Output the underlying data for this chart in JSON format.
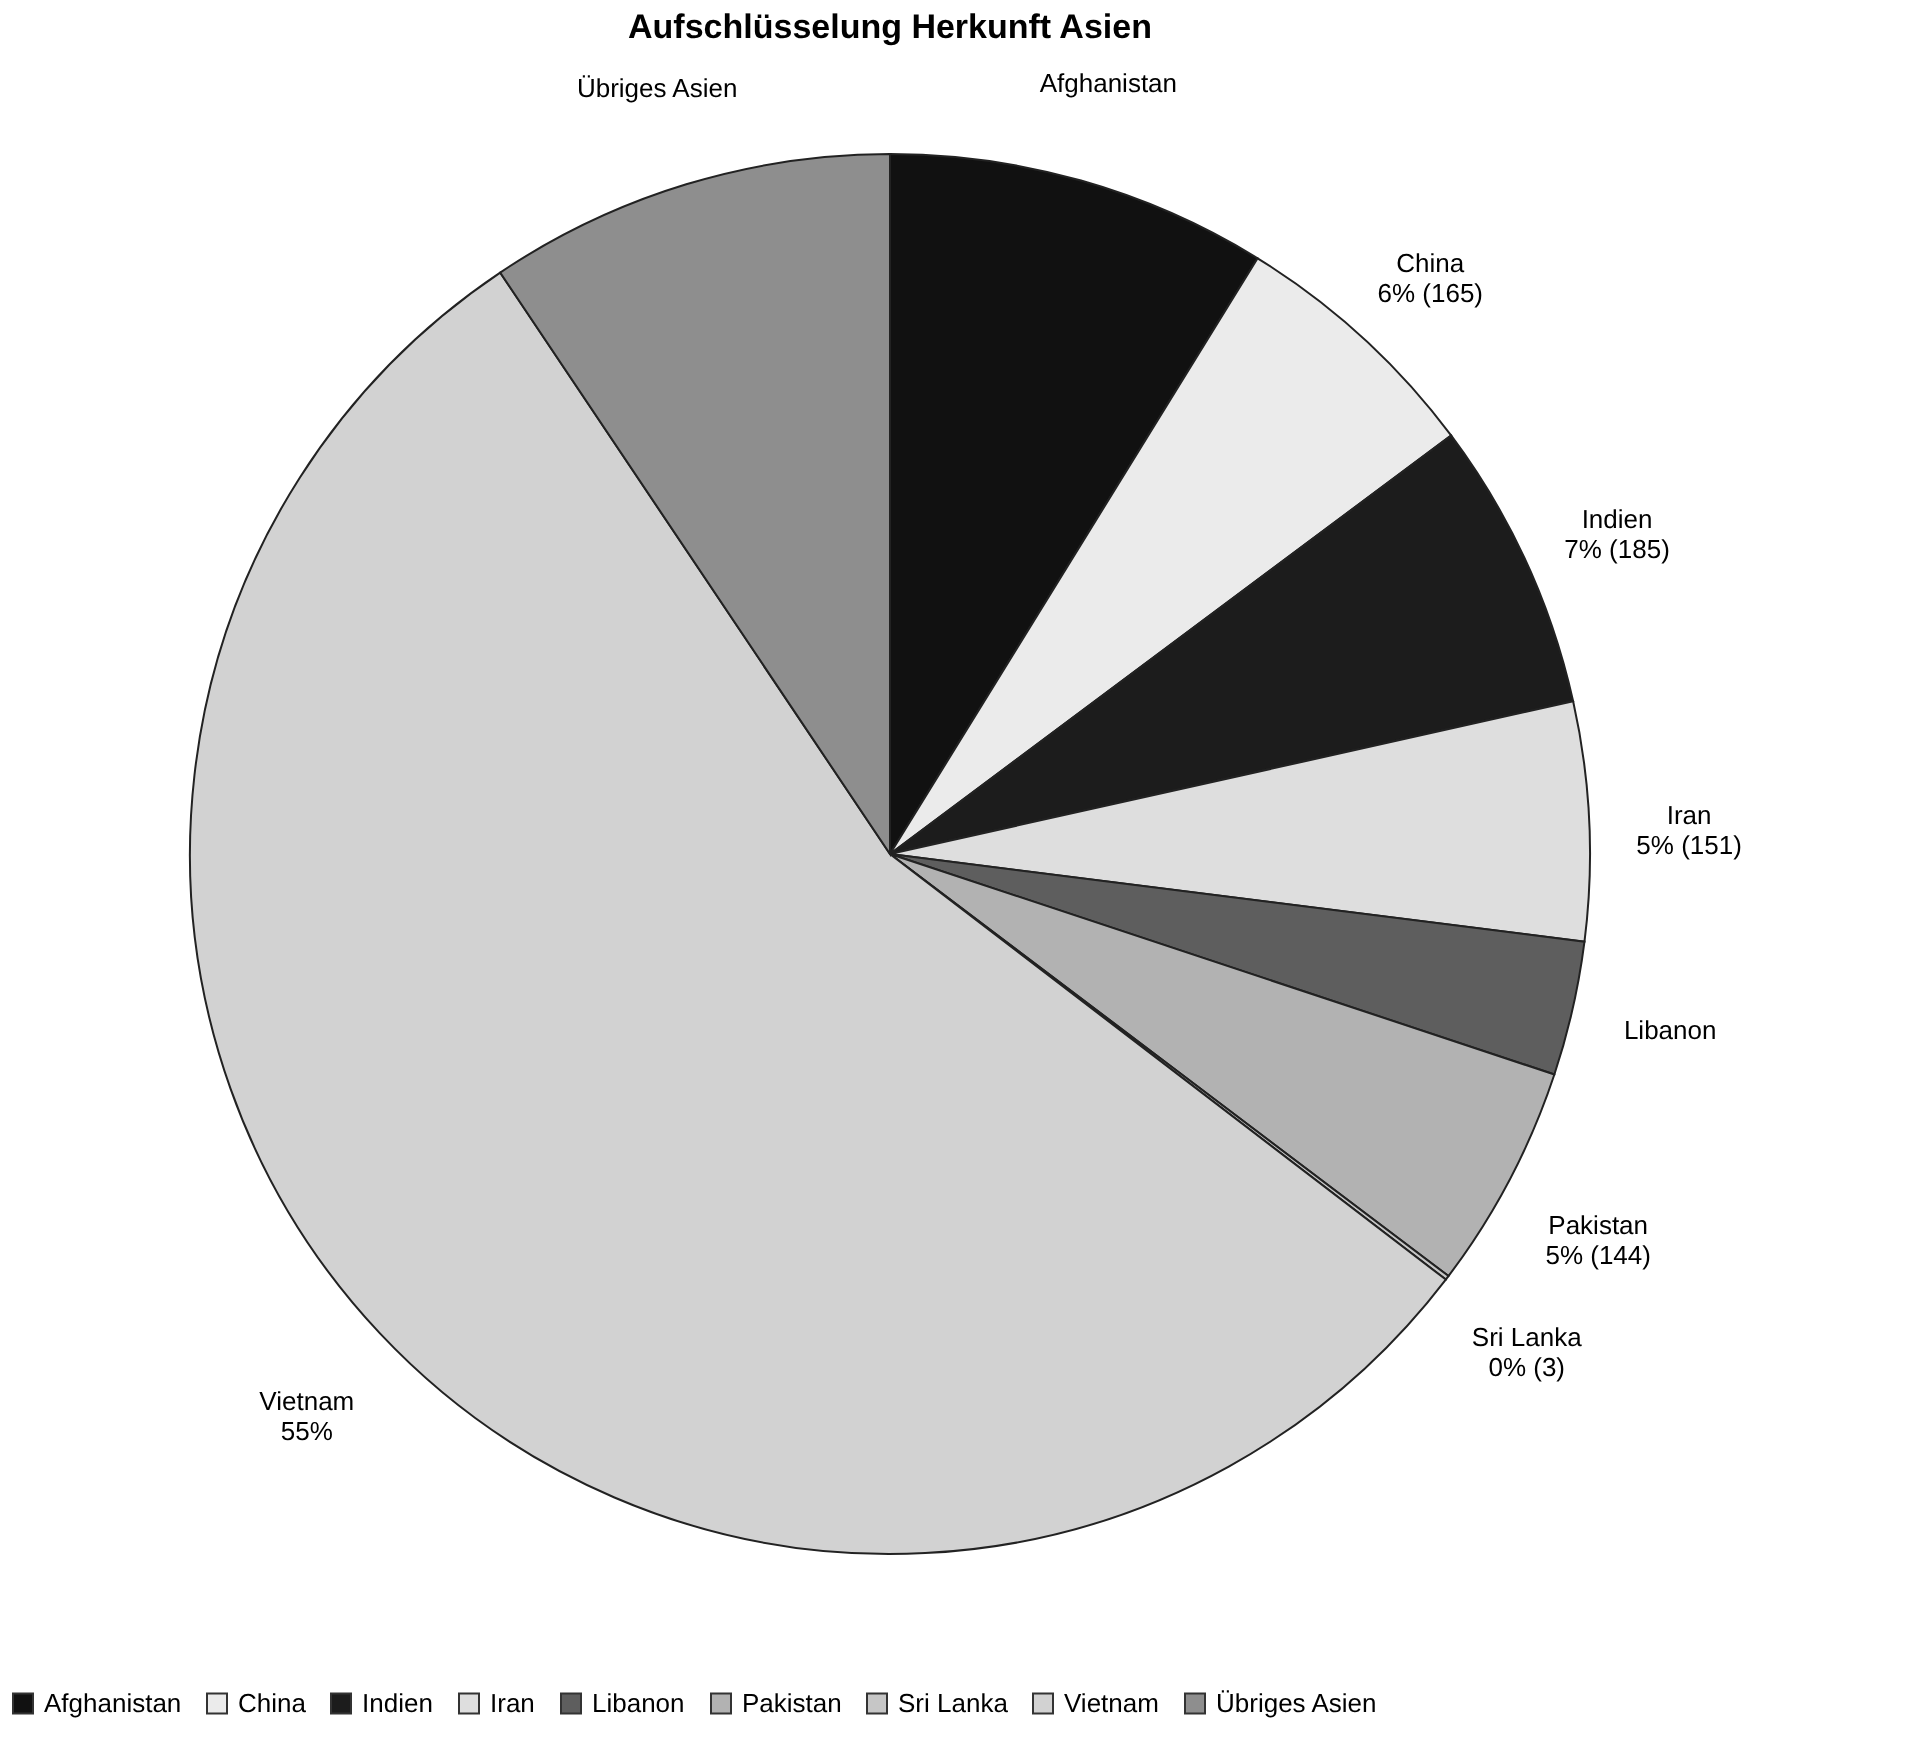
{
  "chart_data": {
    "type": "pie",
    "title": "Aufschlüsselung Herkunft Asien",
    "categories": [
      "Afghanistan",
      "China",
      "Indien",
      "Iran",
      "Libanon",
      "Pakistan",
      "Sri Lanka",
      "Vietnam",
      "Übriges Asien"
    ],
    "values": [
      8.8,
      6.0,
      6.7,
      5.5,
      3.1,
      5.2,
      0.1,
      55.2,
      9.4
    ],
    "value_labels": [
      null,
      "6% (165)",
      "7% (185)",
      "5% (151)",
      null,
      "5% (144)",
      "0% (3)",
      "55%",
      null
    ],
    "colors": [
      "#111111",
      "#ebebeb",
      "#1c1c1c",
      "#dedede",
      "#5e5e5e",
      "#b2b2b2",
      "#c6c6c6",
      "#d2d2d2",
      "#8e8e8e"
    ],
    "legend": "bottom"
  }
}
